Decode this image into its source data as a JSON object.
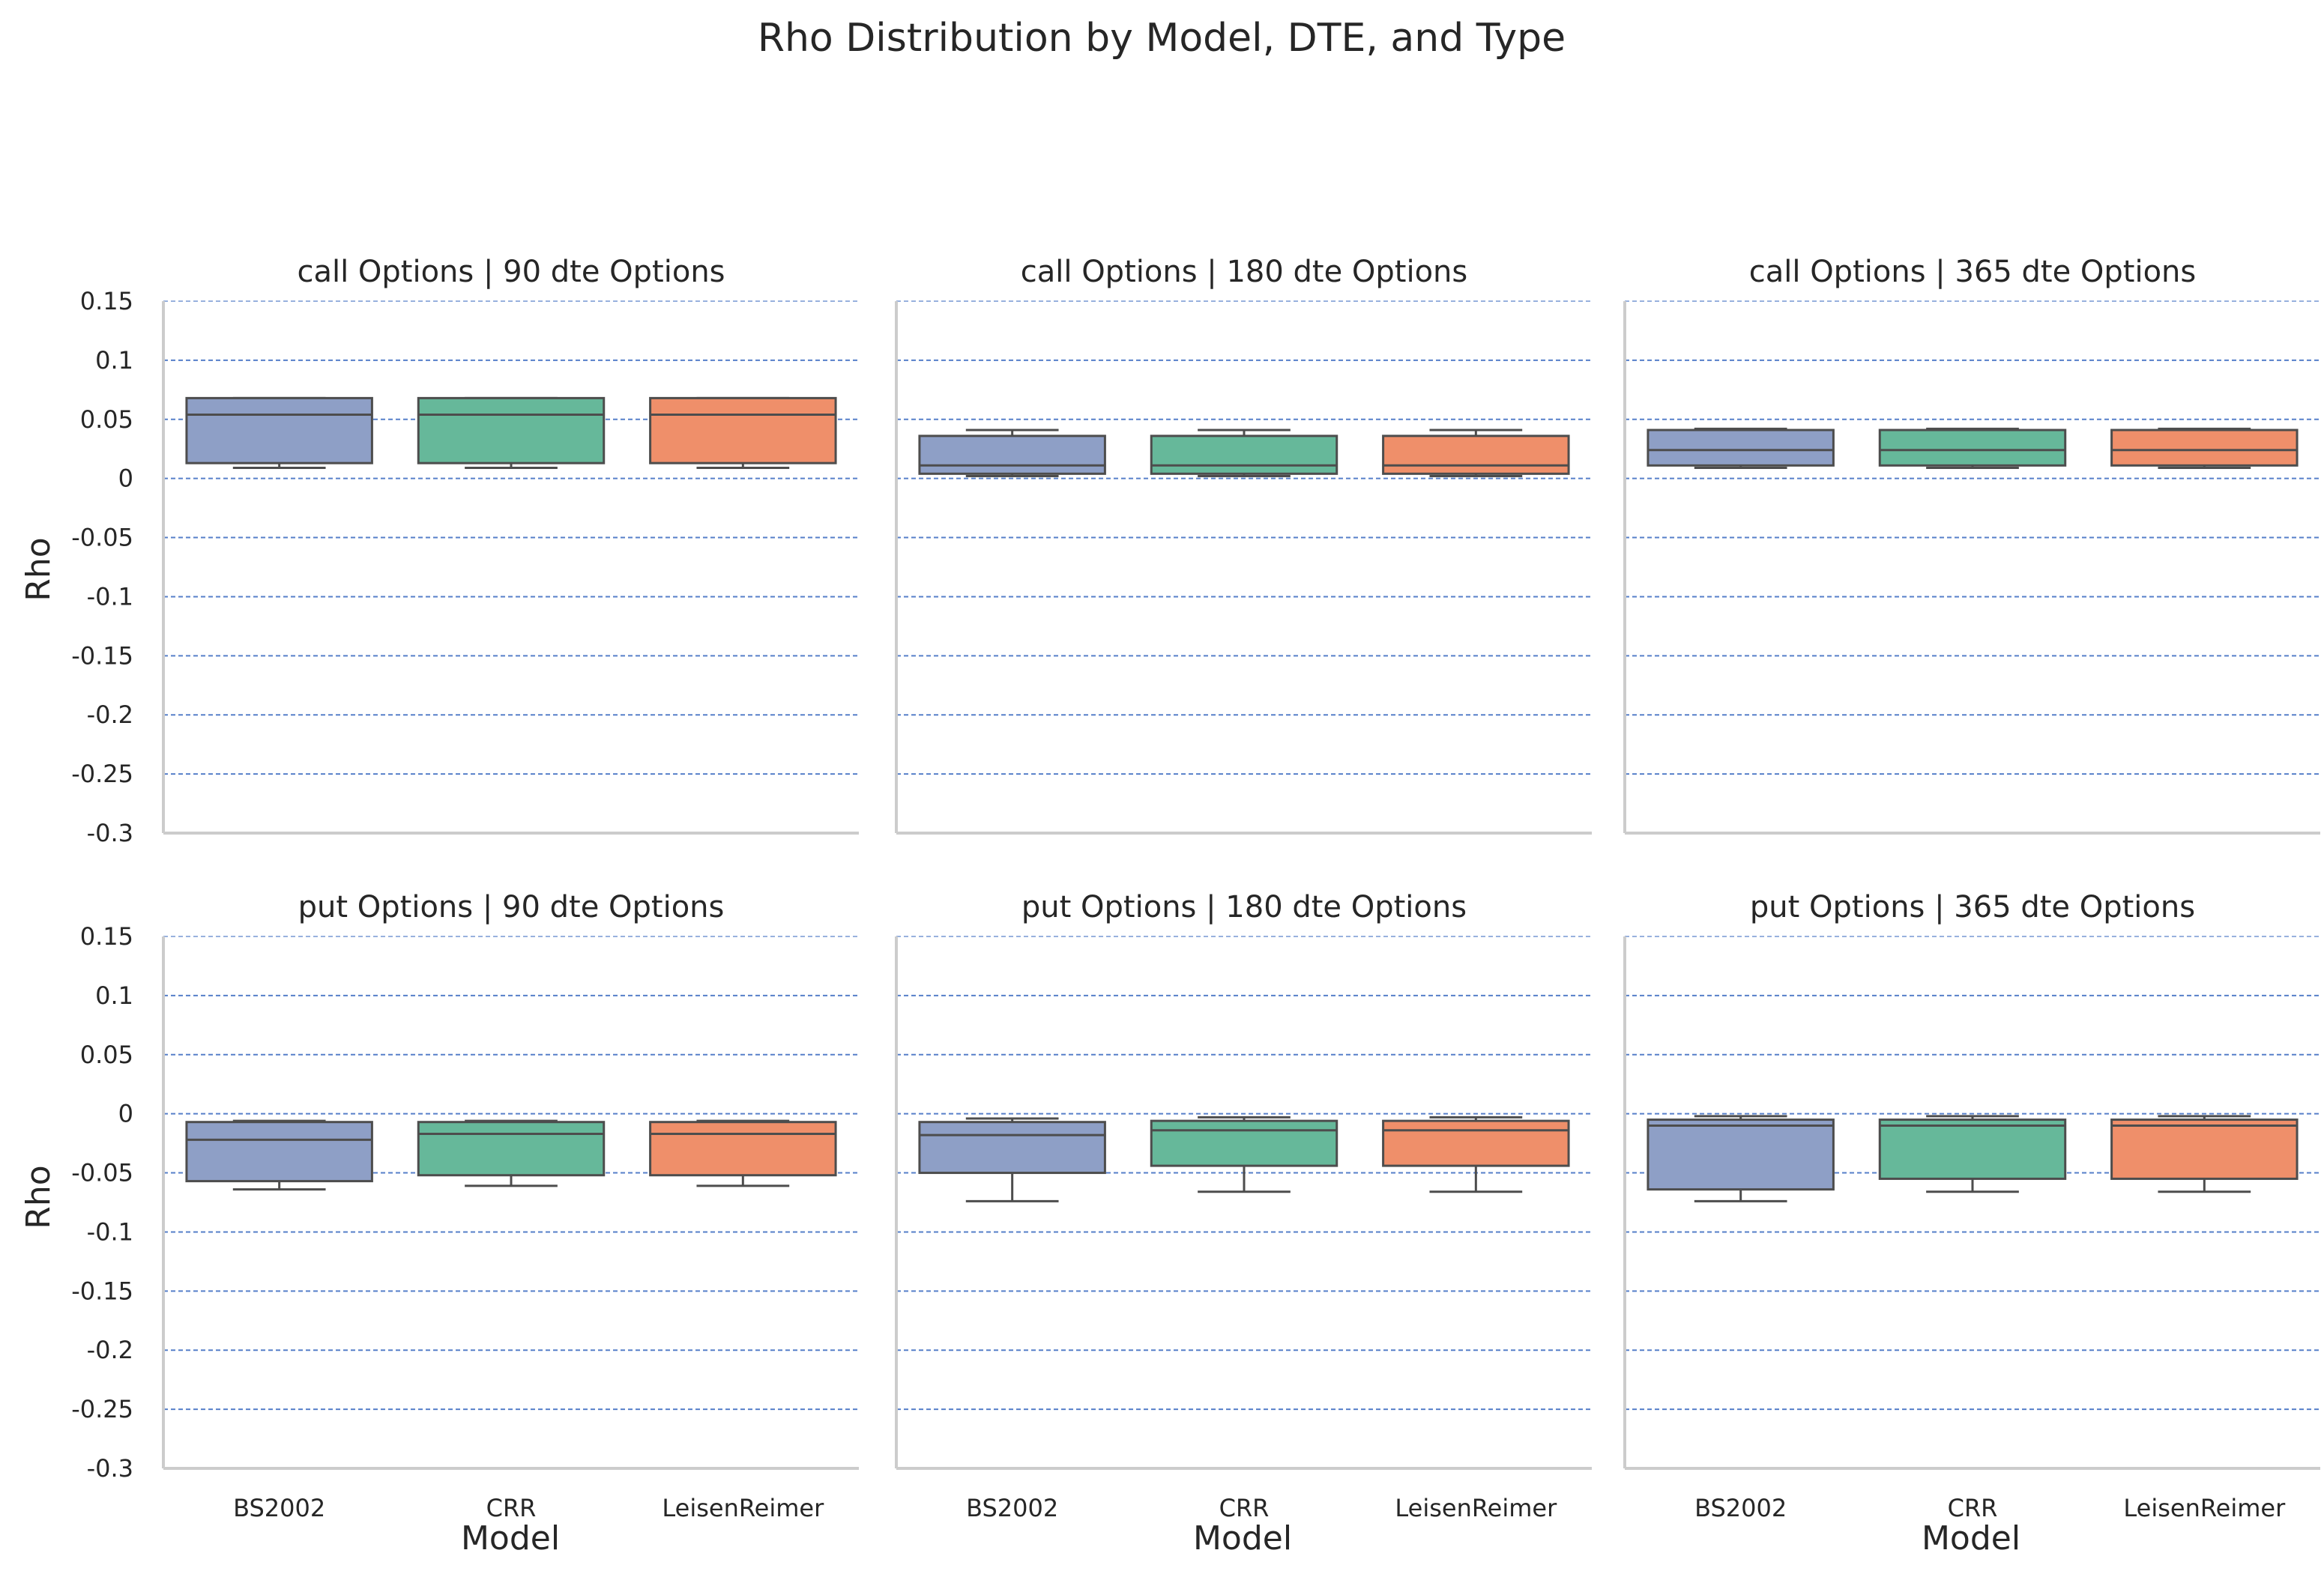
{
  "figure": {
    "title": "Rho Distribution by Model, DTE, and Type",
    "ylabel": "Rho",
    "xlabel": "Model"
  },
  "chart_data": {
    "type": "box",
    "title": "Rho Distribution by Model, DTE, and Type",
    "categories": [
      "BS2002",
      "CRR",
      "LeisenReimer"
    ],
    "colors": [
      "#8e9fc6",
      "#66b89a",
      "#ef8f6a"
    ],
    "grid": true,
    "ylim": [
      -0.3,
      0.15
    ],
    "yticks": [
      0.15,
      0.1,
      0.05,
      0,
      -0.05,
      -0.1,
      -0.15,
      -0.2,
      -0.25,
      -0.3
    ],
    "ytick_labels": [
      "0.15",
      "0.1",
      "0.05",
      "0",
      "-0.05",
      "-0.1",
      "-0.15",
      "-0.2",
      "-0.25",
      "-0.3"
    ],
    "xlabel": "Model",
    "ylabel": "Rho",
    "panels": [
      {
        "title": "call Options | 90 dte Options",
        "boxes": [
          {
            "category": "BS2002",
            "whislo": 0.009,
            "q1": 0.013,
            "median": 0.054,
            "q3": 0.068,
            "whishi": 0.068
          },
          {
            "category": "CRR",
            "whislo": 0.009,
            "q1": 0.013,
            "median": 0.054,
            "q3": 0.068,
            "whishi": 0.068
          },
          {
            "category": "LeisenReimer",
            "whislo": 0.009,
            "q1": 0.013,
            "median": 0.054,
            "q3": 0.068,
            "whishi": 0.068
          }
        ]
      },
      {
        "title": "call Options | 180 dte Options",
        "boxes": [
          {
            "category": "BS2002",
            "whislo": 0.002,
            "q1": 0.004,
            "median": 0.011,
            "q3": 0.036,
            "whishi": 0.041
          },
          {
            "category": "CRR",
            "whislo": 0.002,
            "q1": 0.004,
            "median": 0.011,
            "q3": 0.036,
            "whishi": 0.041
          },
          {
            "category": "LeisenReimer",
            "whislo": 0.002,
            "q1": 0.004,
            "median": 0.011,
            "q3": 0.036,
            "whishi": 0.041
          }
        ]
      },
      {
        "title": "call Options | 365 dte Options",
        "boxes": [
          {
            "category": "BS2002",
            "whislo": 0.009,
            "q1": 0.011,
            "median": 0.024,
            "q3": 0.041,
            "whishi": 0.042
          },
          {
            "category": "CRR",
            "whislo": 0.009,
            "q1": 0.011,
            "median": 0.024,
            "q3": 0.041,
            "whishi": 0.042
          },
          {
            "category": "LeisenReimer",
            "whislo": 0.009,
            "q1": 0.011,
            "median": 0.024,
            "q3": 0.041,
            "whishi": 0.042
          }
        ]
      },
      {
        "title": "put Options | 90 dte Options",
        "boxes": [
          {
            "category": "BS2002",
            "whislo": -0.064,
            "q1": -0.057,
            "median": -0.022,
            "q3": -0.007,
            "whishi": -0.006
          },
          {
            "category": "CRR",
            "whislo": -0.061,
            "q1": -0.052,
            "median": -0.017,
            "q3": -0.007,
            "whishi": -0.006
          },
          {
            "category": "LeisenReimer",
            "whislo": -0.061,
            "q1": -0.052,
            "median": -0.017,
            "q3": -0.007,
            "whishi": -0.006
          }
        ]
      },
      {
        "title": "put Options | 180 dte Options",
        "boxes": [
          {
            "category": "BS2002",
            "whislo": -0.074,
            "q1": -0.05,
            "median": -0.018,
            "q3": -0.007,
            "whishi": -0.004
          },
          {
            "category": "CRR",
            "whislo": -0.066,
            "q1": -0.044,
            "median": -0.014,
            "q3": -0.006,
            "whishi": -0.003
          },
          {
            "category": "LeisenReimer",
            "whislo": -0.066,
            "q1": -0.044,
            "median": -0.014,
            "q3": -0.006,
            "whishi": -0.003
          }
        ]
      },
      {
        "title": "put Options | 365 dte Options",
        "boxes": [
          {
            "category": "BS2002",
            "whislo": -0.074,
            "q1": -0.064,
            "median": -0.01,
            "q3": -0.005,
            "whishi": -0.002
          },
          {
            "category": "CRR",
            "whislo": -0.066,
            "q1": -0.055,
            "median": -0.01,
            "q3": -0.005,
            "whishi": -0.002
          },
          {
            "category": "LeisenReimer",
            "whislo": -0.066,
            "q1": -0.055,
            "median": -0.01,
            "q3": -0.005,
            "whishi": -0.002
          }
        ]
      }
    ]
  }
}
